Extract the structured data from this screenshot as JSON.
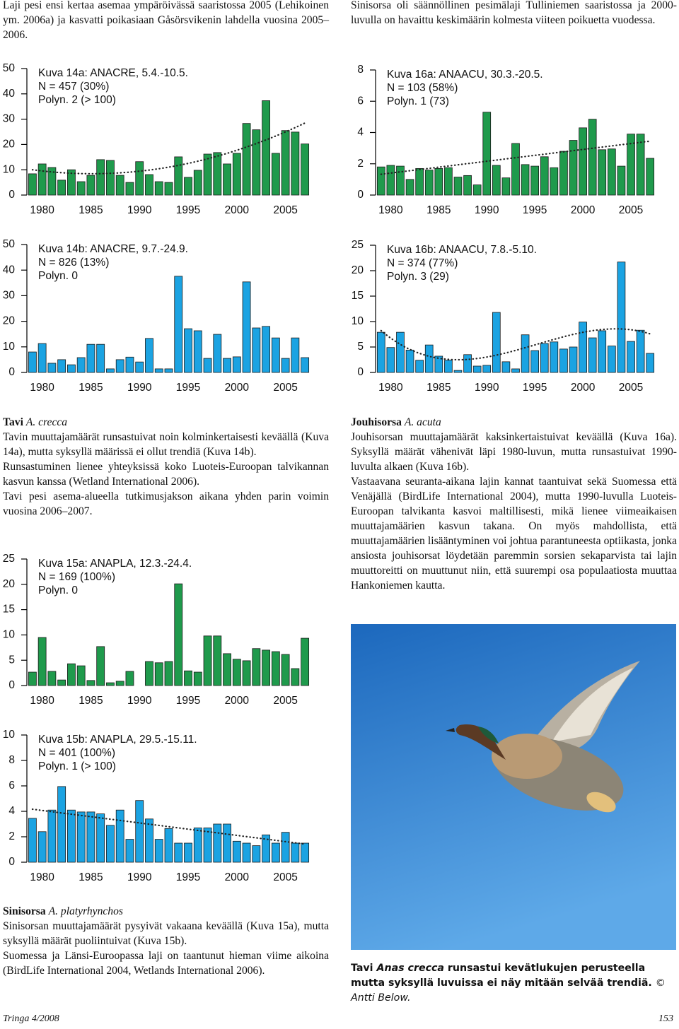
{
  "header": {
    "left": "Laji pesi ensi kertaa asemaa ympäröivässä saaristossa 2005 (Lehikoinen ym. 2006a) ja kasvatti poikasiaan Gåsörsvikenin lahdella vuosina 2005–2006.",
    "right": "Sinisorsa oli säännöllinen pesimälaji Tulliniemen saaristossa ja 2000-luvulla on havaittu keskimäärin kolmesta viiteen poikuetta vuodessa."
  },
  "sections": [
    {
      "name": "Tavi",
      "latin": "A. crecca",
      "paragraphs": [
        "Tavin muuttajamäärät runsastuivat noin kolminkertaisesti keväällä (Kuva 14a), mutta syksyllä määrissä ei ollut trendiä (Kuva 14b).",
        "Runsastuminen lienee yhteyksissä koko Luoteis-Euroopan talvikannan kasvun kanssa (Wetland International 2006).",
        "Tavi pesi asema-alueella tutkimusjakson aikana yhden parin voimin vuosina 2006–2007."
      ]
    },
    {
      "name": "Sinisorsa",
      "latin": "A. platyrhynchos",
      "paragraphs": [
        "Sinisorsan muuttajamäärät pysyivät vakaana keväällä (Kuva 15a), mutta syksyllä määrät puoliintuivat (Kuva 15b).",
        "Suomessa ja Länsi-Euroopassa laji on taantunut hieman viime aikoina (BirdLife International 2004, Wetlands International 2006)."
      ]
    },
    {
      "name": "Jouhisorsa",
      "latin": "A. acuta",
      "paragraphs": [
        "Jouhisorsan muuttajamäärät kaksinkertaistuivat keväällä (Kuva 16a). Syksyllä määrät vähenivät läpi 1980-luvun, mutta runsastuivat 1990-luvulta alkaen (Kuva 16b).",
        "Vastaavana seuranta-aikana lajin kannat taantuivat sekä Suomessa että Venäjällä (BirdLife International 2004), mutta 1990-luvulla Luoteis-Euroopan talvikanta kasvoi maltillisesti, mikä lienee viimeaikaisen muuttajamäärien kasvun takana. On myös mahdollista, että muuttajamäärien lisääntyminen voi johtua parantuneesta optiikasta, jonka ansiosta jouhisorsat löydetään paremmin sorsien sekaparvista tai lajin muuttoreitti on muuttunut niin, että suurempi osa populaatiosta muuttaa Hankoniemen kautta."
      ]
    }
  ],
  "caption": {
    "lead": "Tavi",
    "latin": "Anas crecca",
    "text": "runsastui kevätlukujen perusteella mutta syksyllä luvuissa ei näy mitään selvää trendiä.",
    "credit": "© Antti Below."
  },
  "footer": {
    "left": "Tringa 4/2008",
    "right": "153"
  },
  "chart_data": [
    {
      "type": "bar",
      "title": "Kuva 14a: ANACRE, 5.4.-10.5.",
      "annotations": [
        "N = 457 (30%)",
        "Polyn. 2 (> 100)"
      ],
      "color": "#1f9a4c",
      "trend_degree": 2,
      "x": [
        1979,
        1980,
        1981,
        1982,
        1983,
        1984,
        1985,
        1986,
        1987,
        1988,
        1989,
        1990,
        1991,
        1992,
        1993,
        1994,
        1995,
        1996,
        1997,
        1998,
        1999,
        2000,
        2001,
        2002,
        2003,
        2004,
        2005,
        2006,
        2007
      ],
      "values": [
        8.4,
        12.3,
        10.9,
        5.9,
        10,
        5.3,
        7.8,
        14,
        13.7,
        7.8,
        5,
        13.2,
        8.1,
        5.3,
        5,
        15.1,
        7,
        9.8,
        16.2,
        16.8,
        12.3,
        16.5,
        28.3,
        25.8,
        37.3,
        16.5,
        25.5,
        24.9,
        20.2
      ],
      "xlim": [
        1978.5,
        2007.5
      ],
      "xticks": [
        1980,
        1985,
        1990,
        1995,
        2000,
        2005
      ],
      "ylim": [
        0,
        50
      ],
      "yticks": [
        0,
        10,
        20,
        30,
        40,
        50
      ]
    },
    {
      "type": "bar",
      "title": "Kuva 14b: ANACRE, 9.7.-24.9.",
      "annotations": [
        "N = 826 (13%)",
        "Polyn. 0"
      ],
      "color": "#1ba3e2",
      "x": [
        1979,
        1980,
        1981,
        1982,
        1983,
        1984,
        1985,
        1986,
        1987,
        1988,
        1989,
        1990,
        1991,
        1992,
        1993,
        1994,
        1995,
        1996,
        1997,
        1998,
        1999,
        2000,
        2001,
        2002,
        2003,
        2004,
        2005,
        2006,
        2007
      ],
      "values": [
        8,
        11.3,
        3.6,
        5,
        3,
        5.8,
        11,
        11,
        1.4,
        5,
        6,
        4.1,
        13.3,
        1.4,
        1.4,
        37.6,
        17.1,
        16.3,
        5.5,
        14.9,
        5.5,
        6.1,
        35.4,
        17.4,
        18,
        13.5,
        5.5,
        13.5,
        5.8
      ],
      "xlim": [
        1978.5,
        2007.5
      ],
      "xticks": [
        1980,
        1985,
        1990,
        1995,
        2000,
        2005
      ],
      "ylim": [
        0,
        50
      ],
      "yticks": [
        0,
        10,
        20,
        30,
        40,
        50
      ]
    },
    {
      "type": "bar",
      "title": "Kuva 15a: ANAPLA, 12.3.-24.4.",
      "annotations": [
        "N = 169 (100%)",
        "Polyn. 0"
      ],
      "color": "#1f9a4c",
      "x": [
        1979,
        1980,
        1981,
        1982,
        1983,
        1984,
        1985,
        1986,
        1987,
        1988,
        1989,
        1990,
        1991,
        1992,
        1993,
        1994,
        1995,
        1996,
        1997,
        1998,
        1999,
        2000,
        2001,
        2002,
        2003,
        2004,
        2005,
        2006,
        2007
      ],
      "values": [
        2.65,
        9.5,
        2.8,
        1.1,
        4.3,
        3.9,
        1,
        7.7,
        0.55,
        0.85,
        2.8,
        0,
        4.75,
        4.5,
        4.75,
        20.1,
        2.9,
        2.65,
        9.8,
        9.8,
        6.3,
        5.2,
        4.9,
        7.3,
        7,
        6.7,
        6.15,
        3.35,
        9.35
      ],
      "xlim": [
        1978.5,
        2007.5
      ],
      "xticks": [
        1980,
        1985,
        1990,
        1995,
        2000,
        2005
      ],
      "ylim": [
        0,
        25
      ],
      "yticks": [
        0,
        5,
        10,
        15,
        20,
        25
      ]
    },
    {
      "type": "bar",
      "title": "Kuva 15b: ANAPLA, 29.5.-15.11.",
      "annotations": [
        "N = 401 (100%)",
        "Polyn. 1 (> 100)"
      ],
      "color": "#1ba3e2",
      "trend_degree": 1,
      "x": [
        1979,
        1980,
        1981,
        1982,
        1983,
        1984,
        1985,
        1986,
        1987,
        1988,
        1989,
        1990,
        1991,
        1992,
        1993,
        1994,
        1995,
        1996,
        1997,
        1998,
        1999,
        2000,
        2001,
        2002,
        2003,
        2004,
        2005,
        2006,
        2007
      ],
      "values": [
        3.45,
        2.4,
        4.1,
        5.95,
        4.1,
        3.95,
        3.95,
        3.8,
        2.9,
        4.1,
        1.8,
        4.85,
        3.4,
        1.8,
        2.65,
        1.5,
        1.5,
        2.7,
        2.7,
        3,
        3,
        1.65,
        1.5,
        1.3,
        2.15,
        1.5,
        2.35,
        1.5,
        1.5
      ],
      "xlim": [
        1978.5,
        2007.5
      ],
      "xticks": [
        1980,
        1985,
        1990,
        1995,
        2000,
        2005
      ],
      "ylim": [
        0,
        10
      ],
      "yticks": [
        0,
        2,
        4,
        6,
        8,
        10
      ]
    },
    {
      "type": "bar",
      "title": "Kuva 16a: ANAACU, 30.3.-20.5.",
      "annotations": [
        "N = 103 (58%)",
        "Polyn. 1 (73)"
      ],
      "color": "#1f9a4c",
      "trend_degree": 1,
      "x": [
        1979,
        1980,
        1981,
        1982,
        1983,
        1984,
        1985,
        1986,
        1987,
        1988,
        1989,
        1990,
        1991,
        1992,
        1993,
        1994,
        1995,
        1996,
        1997,
        1998,
        1999,
        2000,
        2001,
        2002,
        2003,
        2004,
        2005,
        2006,
        2007
      ],
      "values": [
        1.8,
        1.9,
        1.85,
        1,
        1.7,
        1.6,
        1.7,
        1.75,
        1.15,
        1.25,
        0.65,
        5.3,
        1.9,
        1.1,
        3.3,
        1.95,
        1.85,
        2.45,
        1.75,
        2.8,
        3.5,
        4.3,
        4.85,
        2.9,
        2.95,
        1.85,
        3.9,
        3.9,
        2.35
      ],
      "xlim": [
        1978.5,
        2007.5
      ],
      "xticks": [
        1980,
        1985,
        1990,
        1995,
        2000,
        2005
      ],
      "ylim": [
        0,
        8
      ],
      "yticks": [
        0,
        2,
        4,
        6,
        8
      ]
    },
    {
      "type": "bar",
      "title": "Kuva 16b: ANAACU, 7.8.-5.10.",
      "annotations": [
        "N = 374 (77%)",
        "Polyn. 3 (29)"
      ],
      "color": "#1ba3e2",
      "trend_degree": 3,
      "x": [
        1979,
        1980,
        1981,
        1982,
        1983,
        1984,
        1985,
        1986,
        1987,
        1988,
        1989,
        1990,
        1991,
        1992,
        1993,
        1994,
        1995,
        1996,
        1997,
        1998,
        1999,
        2000,
        2001,
        2002,
        2003,
        2004,
        2005,
        2006,
        2007
      ],
      "values": [
        7.9,
        4.9,
        7.9,
        4.4,
        2.4,
        5.4,
        3.2,
        2.4,
        0.4,
        3.5,
        1.25,
        1.4,
        11.8,
        2.1,
        0.7,
        7.4,
        4.3,
        5.7,
        6,
        4.6,
        5,
        9.9,
        6.8,
        8.2,
        5.2,
        21.7,
        6.1,
        8.3,
        3.75
      ],
      "xlim": [
        1978.5,
        2007.5
      ],
      "xticks": [
        1980,
        1985,
        1990,
        1995,
        2000,
        2005
      ],
      "ylim": [
        0,
        25
      ],
      "yticks": [
        0,
        5,
        10,
        15,
        20,
        25
      ]
    }
  ]
}
